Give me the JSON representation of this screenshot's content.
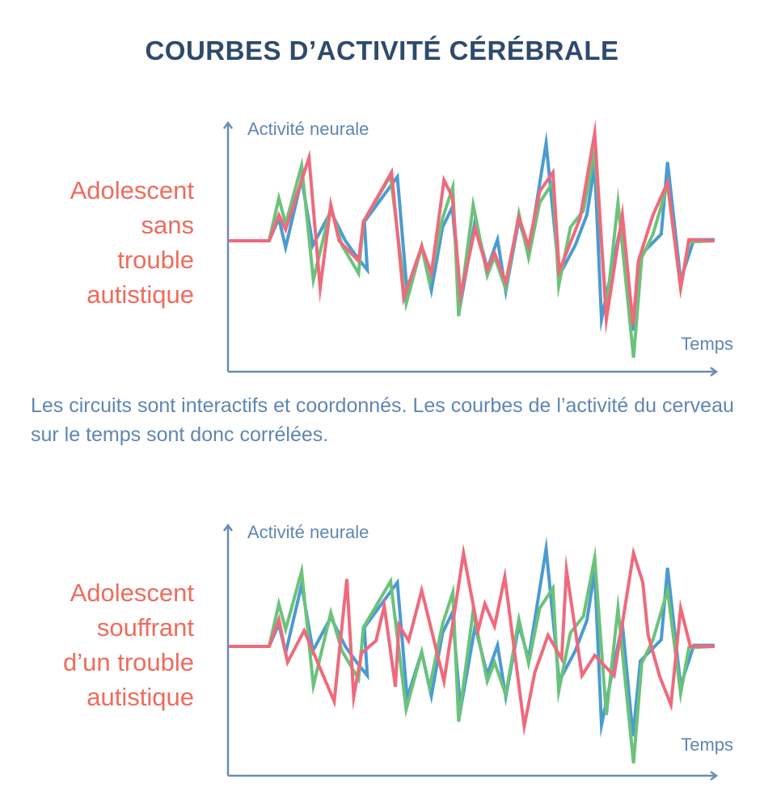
{
  "title": "COURBES D’ACTIVITÉ CÉRÉBRALE",
  "caption": "Les circuits sont interactifs et coordonnés. Les courbes de l’activité du cerveau sur le temps sont donc corrélées.",
  "colors": {
    "axis": "#6a8cb6",
    "blue": "#4b9bd1",
    "green": "#6cc27b",
    "red": "#ee6a7c",
    "label": "#ef6b5c",
    "title": "#2e4a6c"
  },
  "chart_data": [
    {
      "type": "line",
      "group_label": [
        "Adolescent",
        "sans",
        "trouble",
        "autistique"
      ],
      "ylabel": "Activité neurale",
      "xlabel": "Temps",
      "xlim": [
        0,
        100
      ],
      "ylim": [
        -110,
        110
      ],
      "grid": false,
      "series": [
        {
          "name": "blue",
          "color": "#4b9bd1",
          "x": [
            0,
            8.3,
            10.3,
            11.7,
            15,
            17.3,
            21,
            24,
            26.3,
            28.5,
            27.9,
            34.7,
            36.7,
            39.7,
            41.7,
            44,
            46,
            47.7,
            50.7,
            53.2,
            55.3,
            57,
            59.7,
            61.7,
            65.3,
            68,
            71.3,
            73.7,
            75.3,
            76.7,
            81,
            83.2,
            84.7,
            89,
            90.3,
            93,
            95.7,
            100
          ],
          "y": [
            0,
            0,
            20,
            -6,
            55,
            -4,
            26,
            0,
            -14,
            -26,
            17,
            57,
            -46,
            -5,
            -44,
            12,
            30,
            -56,
            18,
            -25,
            1,
            -45,
            19,
            -11,
            87,
            -31,
            -4,
            23,
            67,
            -70,
            20,
            -80,
            -13,
            6,
            70,
            -35,
            1,
            1
          ]
        },
        {
          "name": "green",
          "color": "#6cc27b",
          "x": [
            0,
            8.3,
            10.3,
            11.7,
            15,
            17.4,
            21,
            23.3,
            26.7,
            27.7,
            33.3,
            36.5,
            39.7,
            41.3,
            44,
            46.1,
            47.3,
            50.3,
            53.2,
            54.7,
            57,
            59.7,
            61.7,
            64,
            66.7,
            67.9,
            70.3,
            73,
            75.3,
            77.7,
            80.1,
            83.3,
            85,
            87.3,
            90.3,
            93,
            94.7,
            100
          ],
          "y": [
            0,
            0,
            38,
            15,
            67,
            -35,
            30,
            -4,
            -29,
            17,
            58,
            -56,
            -5,
            -37,
            20,
            48,
            -67,
            32,
            -31,
            -14,
            -43,
            24,
            -15,
            34,
            52,
            -40,
            12,
            27,
            79,
            -61,
            34,
            -104,
            -15,
            6,
            50,
            -42,
            -1,
            0
          ]
        },
        {
          "name": "red",
          "color": "#ee6a7c",
          "x": [
            0,
            8.3,
            10.3,
            11.7,
            16.5,
            18.8,
            21,
            22.7,
            26.7,
            27.7,
            33.5,
            36,
            39.7,
            41.7,
            44.3,
            46,
            47.7,
            50.7,
            53.2,
            54.7,
            57,
            59.7,
            61.7,
            64,
            66.7,
            68,
            72.3,
            75.3,
            77.7,
            81,
            83.2,
            84.3,
            87.3,
            90.3,
            93,
            94.7,
            100
          ],
          "y": [
            0,
            0,
            23,
            10,
            74,
            -42,
            32,
            0,
            -18,
            17,
            61,
            -51,
            -5,
            -29,
            54,
            39,
            -49,
            11,
            -26,
            -11,
            -37,
            21,
            -5,
            44,
            61,
            -27,
            20,
            96,
            -70,
            23,
            -75,
            -18,
            23,
            52,
            -42,
            1,
            0
          ]
        }
      ]
    },
    {
      "type": "line",
      "group_label": [
        "Adolescent",
        "souffrant",
        "d’un trouble",
        "autistique"
      ],
      "ylabel": "Activité neurale",
      "xlabel": "Temps",
      "xlim": [
        0,
        100
      ],
      "ylim": [
        -110,
        110
      ],
      "grid": false,
      "series": [
        {
          "name": "blue",
          "color": "#4b9bd1",
          "x": [
            0,
            8.3,
            10.3,
            11.7,
            15,
            17.3,
            21,
            24,
            26.3,
            28.5,
            27.9,
            34.7,
            36.7,
            39.7,
            41.7,
            44,
            46,
            47.7,
            50.7,
            53.2,
            55.3,
            57,
            59.7,
            61.7,
            65.3,
            68,
            71.3,
            73.7,
            75.3,
            76.7,
            81,
            83.2,
            84.7,
            89,
            90.3,
            93,
            95.7,
            100
          ],
          "y": [
            0,
            0,
            20,
            -6,
            55,
            -4,
            26,
            0,
            -14,
            -26,
            17,
            57,
            -46,
            -5,
            -44,
            12,
            30,
            -56,
            18,
            -25,
            1,
            -45,
            19,
            -11,
            87,
            -31,
            -4,
            23,
            67,
            -70,
            20,
            -80,
            -13,
            6,
            70,
            -35,
            1,
            1
          ]
        },
        {
          "name": "green",
          "color": "#6cc27b",
          "x": [
            0,
            8.3,
            10.3,
            11.7,
            15,
            17.4,
            21,
            23.3,
            26.7,
            27.7,
            33.3,
            36.5,
            39.7,
            41.3,
            44,
            46.1,
            47.3,
            50.3,
            53.2,
            54.7,
            57,
            59.7,
            61.7,
            64,
            66.7,
            67.9,
            70.3,
            73,
            75.3,
            77.7,
            80.1,
            83.3,
            85,
            87.3,
            90.3,
            93,
            94.7,
            100
          ],
          "y": [
            0,
            0,
            38,
            15,
            67,
            -35,
            30,
            -4,
            -29,
            17,
            58,
            -56,
            -5,
            -37,
            20,
            48,
            -67,
            32,
            -31,
            -14,
            -43,
            24,
            -15,
            34,
            52,
            -40,
            12,
            27,
            79,
            -61,
            34,
            -104,
            -15,
            6,
            50,
            -42,
            -1,
            0
          ]
        },
        {
          "name": "red",
          "color": "#ee6a7c",
          "x": [
            0,
            8.3,
            10.3,
            12.1,
            15.5,
            21.7,
            24.3,
            25.7,
            27.3,
            30.3,
            32,
            34.3,
            35,
            37,
            39.7,
            44.3,
            48.3,
            51.3,
            52.7,
            54.7,
            56.8,
            60.8,
            63,
            65.7,
            68.5,
            69.5,
            72.7,
            75.3,
            79.3,
            83.3,
            85.2,
            86.3,
            88.7,
            91,
            93,
            95,
            100
          ],
          "y": [
            0,
            0,
            24,
            -14,
            14,
            -49,
            60,
            -45,
            -6,
            5,
            36,
            -36,
            19,
            5,
            50,
            -31,
            83,
            14,
            38,
            18,
            62,
            -71,
            -23,
            10,
            -11,
            68,
            -26,
            -8,
            -26,
            83,
            57,
            10,
            -27,
            -52,
            34,
            0,
            0
          ]
        }
      ]
    }
  ]
}
